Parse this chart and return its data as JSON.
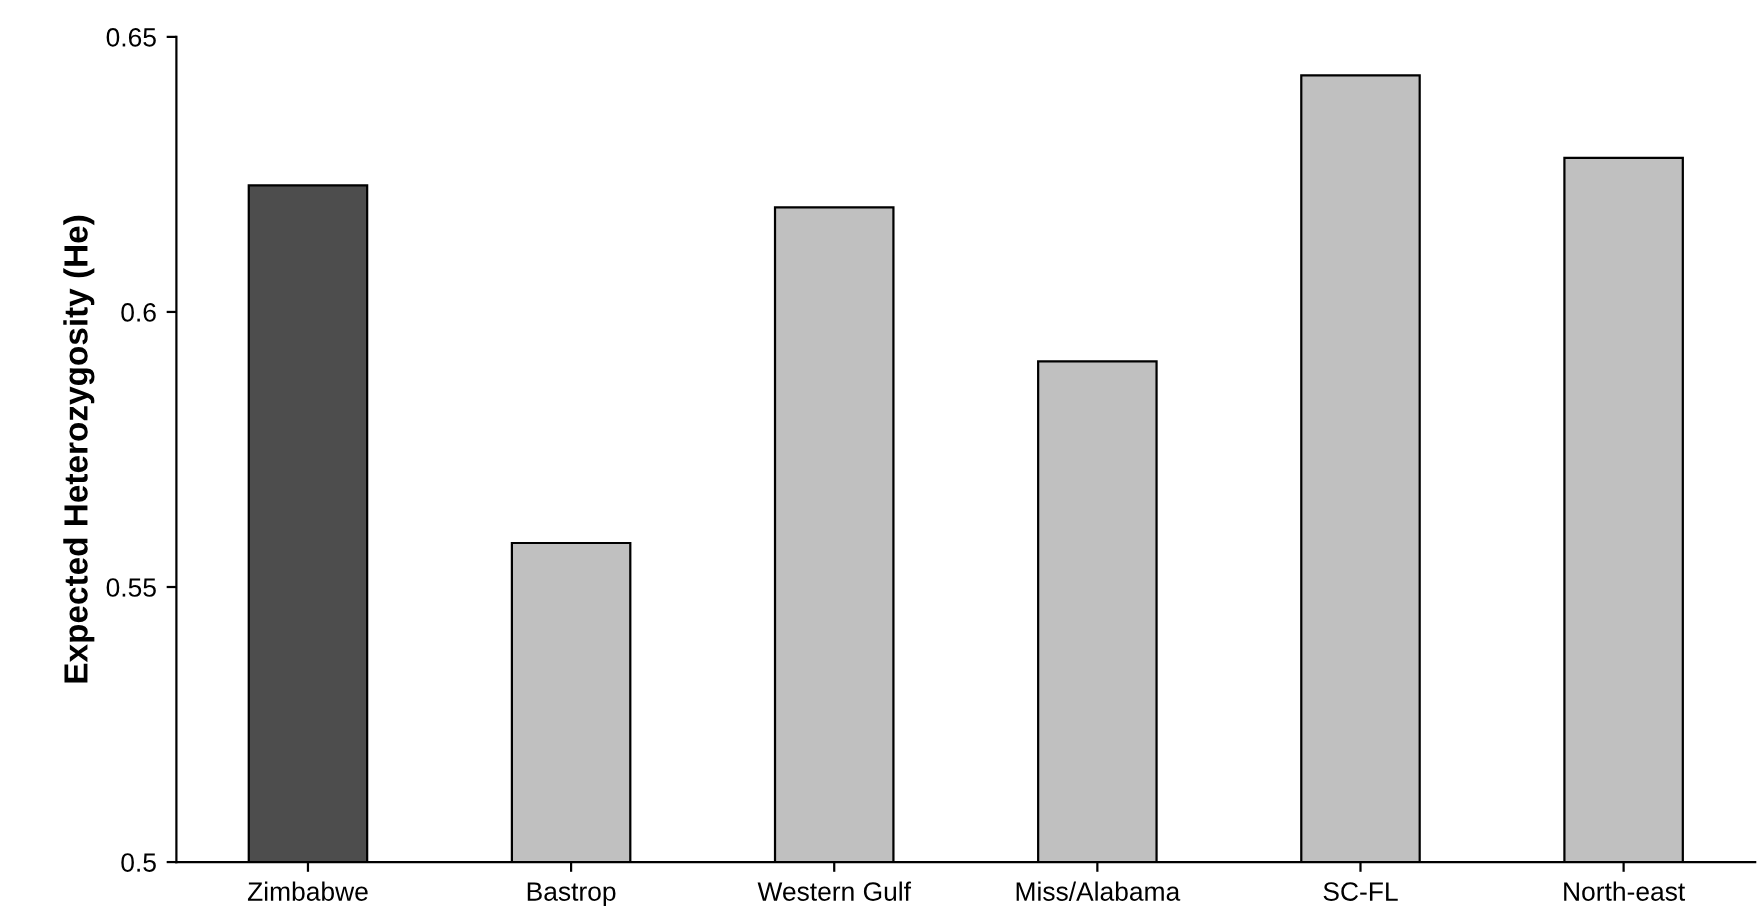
{
  "chart_data": {
    "type": "bar",
    "ylabel": "Expected Heterozygosity (He)",
    "categories": [
      "Zimbabwe",
      "Bastrop",
      "Western Gulf",
      "Miss/Alabama",
      "SC-FL",
      "North-east"
    ],
    "values": [
      0.623,
      0.558,
      0.619,
      0.591,
      0.643,
      0.628
    ],
    "colors": [
      "#4d4d4d",
      "#c0c0c0",
      "#c0c0c0",
      "#c0c0c0",
      "#c0c0c0",
      "#c0c0c0"
    ],
    "ylim": [
      0.5,
      0.65
    ],
    "yticks": [
      {
        "value": 0.5,
        "label": "0.5"
      },
      {
        "value": 0.55,
        "label": "0.55"
      },
      {
        "value": 0.6,
        "label": "0.6"
      },
      {
        "value": 0.65,
        "label": "0.65"
      }
    ],
    "grid": false,
    "legend": false
  }
}
